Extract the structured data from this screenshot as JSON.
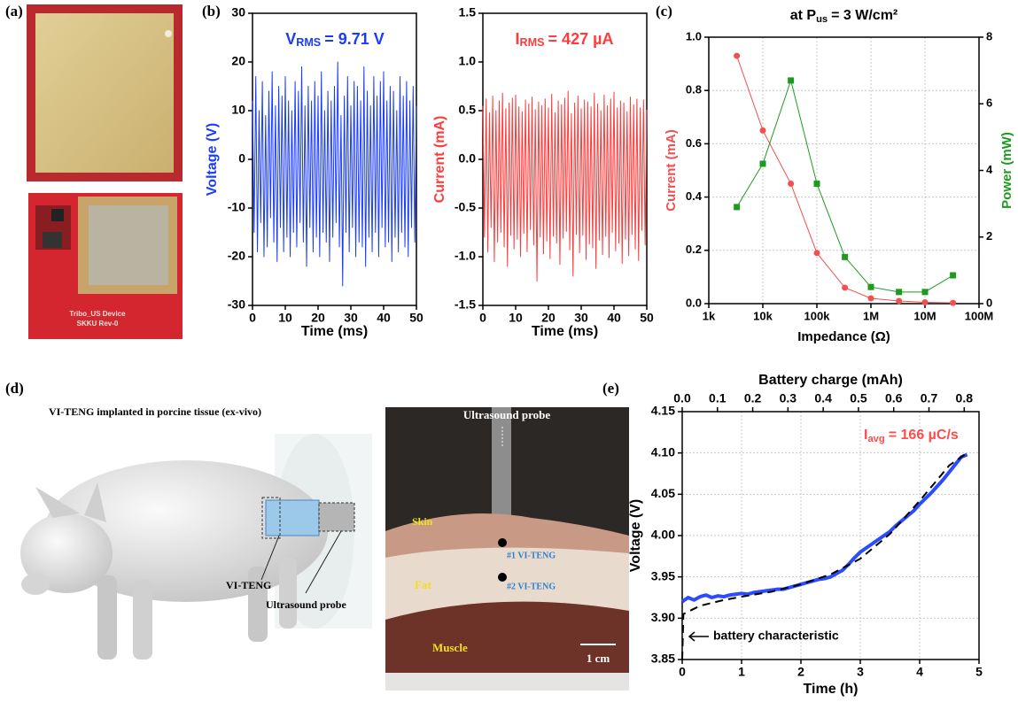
{
  "figure": {
    "panel_labels": [
      "(a)",
      "(b)",
      "(c)",
      "(d)",
      "(e)"
    ],
    "pcb": [
      "Tribo_US Device",
      "SKKU Rev-0"
    ],
    "illustration": {
      "title": "VI-TENG implanted in porcine tissue (ex-vivo)",
      "labels": [
        "VI-TENG",
        "Ultrasound probe"
      ]
    },
    "photo": {
      "labels": [
        "Ultrasound probe",
        "Skin",
        "Fat",
        "Muscle",
        "#1 VI-TENG",
        "#2 VI-TENG",
        "1 cm"
      ]
    }
  },
  "chart_data": [
    {
      "type": "line",
      "x": [
        0,
        0.5,
        1,
        1.5,
        2,
        2.5,
        3,
        3.5,
        4,
        4.5,
        5,
        5.5,
        6,
        6.5,
        7,
        7.5,
        8,
        8.5,
        9,
        9.5,
        10,
        10.5,
        11,
        11.5,
        12,
        12.5,
        13,
        13.5,
        14,
        14.5,
        15,
        15.5,
        16,
        16.5,
        17,
        17.5,
        18,
        18.5,
        19,
        19.5,
        20,
        20.5,
        21,
        21.5,
        22,
        22.5,
        23,
        23.5,
        24,
        24.5,
        25,
        25.5,
        26,
        26.5,
        27,
        27.5,
        28,
        28.5,
        29,
        29.5,
        30,
        30.5,
        31,
        31.5,
        32,
        32.5,
        33,
        33.5,
        34,
        34.5,
        35,
        35.5,
        36,
        36.5,
        37,
        37.5,
        38,
        38.5,
        39,
        39.5,
        40,
        40.5,
        41,
        41.5,
        42,
        42.5,
        43,
        43.5,
        44,
        44.5,
        45,
        45.5,
        46,
        46.5,
        47,
        47.5,
        48,
        48.5,
        49,
        49.5,
        50
      ],
      "xlim": [
        0,
        50
      ],
      "xticks": [
        0,
        10,
        20,
        30,
        40,
        50
      ],
      "ylim": [
        -30,
        30
      ],
      "yticks": [
        -30,
        -20,
        -10,
        0,
        10,
        20,
        30
      ],
      "xlabel": "Time (ms)",
      "ylabel": "Voltage (V)",
      "grid": false,
      "series": [
        {
          "color": "#1a3cff",
          "values": [
            12,
            -15,
            17,
            -19,
            10,
            -13,
            16,
            -20,
            9,
            -18,
            14,
            -12,
            18,
            -17,
            11,
            -21,
            15,
            -14,
            13,
            -19,
            17,
            -16,
            12,
            -20,
            10,
            -15,
            16,
            -18,
            14,
            -13,
            19,
            -17,
            11,
            -22,
            15,
            -14,
            12,
            -19,
            16,
            -16,
            13,
            -20,
            18,
            -15,
            10,
            -17,
            14,
            -21,
            12,
            -16,
            15,
            -13,
            20,
            -18,
            9,
            -26,
            13,
            -15,
            17,
            -19,
            11,
            -14,
            16,
            -20,
            15,
            -17,
            12,
            -18,
            19,
            -22,
            14,
            -16,
            11,
            -19,
            17,
            -15,
            13,
            -20,
            16,
            -14,
            18,
            -18,
            12,
            -17,
            15,
            -21,
            14,
            -16,
            10,
            -19,
            17,
            -15,
            13,
            -18,
            16,
            -20,
            12,
            -14,
            15,
            -17,
            11
          ]
        }
      ],
      "annotation": {
        "text": "V",
        "sub": "RMS",
        "rest": "= 9.71 V",
        "color": "#1a3cff"
      }
    },
    {
      "type": "line",
      "x": [
        0,
        0.5,
        1,
        1.5,
        2,
        2.5,
        3,
        3.5,
        4,
        4.5,
        5,
        5.5,
        6,
        6.5,
        7,
        7.5,
        8,
        8.5,
        9,
        9.5,
        10,
        10.5,
        11,
        11.5,
        12,
        12.5,
        13,
        13.5,
        14,
        14.5,
        15,
        15.5,
        16,
        16.5,
        17,
        17.5,
        18,
        18.5,
        19,
        19.5,
        20,
        20.5,
        21,
        21.5,
        22,
        22.5,
        23,
        23.5,
        24,
        24.5,
        25,
        25.5,
        26,
        26.5,
        27,
        27.5,
        28,
        28.5,
        29,
        29.5,
        30,
        30.5,
        31,
        31.5,
        32,
        32.5,
        33,
        33.5,
        34,
        34.5,
        35,
        35.5,
        36,
        36.5,
        37,
        37.5,
        38,
        38.5,
        39,
        39.5,
        40,
        40.5,
        41,
        41.5,
        42,
        42.5,
        43,
        43.5,
        44,
        44.5,
        45,
        45.5,
        46,
        46.5,
        47,
        47.5,
        48,
        48.5,
        49,
        49.5,
        50
      ],
      "xlim": [
        0,
        50
      ],
      "xticks": [
        0,
        10,
        20,
        30,
        40,
        50
      ],
      "ylim": [
        -1.5,
        1.5
      ],
      "yticks": [
        -1.5,
        {
          "value": -1,
          "label": "-1.0"
        },
        -0.5,
        {
          "value": 0,
          "label": "0.0"
        },
        0.5,
        {
          "value": 1,
          "label": "1.0"
        },
        1.5
      ],
      "xlabel": "Time (ms)",
      "ylabel": "Current (mA)",
      "grid": false,
      "series": [
        {
          "color": "#ff3b3b",
          "values": [
            0.55,
            -0.8,
            0.62,
            -0.95,
            0.48,
            -0.7,
            0.65,
            -1.05,
            0.5,
            -0.85,
            0.6,
            -0.75,
            0.68,
            -0.9,
            0.52,
            -1.1,
            0.58,
            -0.78,
            0.63,
            -0.92,
            0.66,
            -0.82,
            0.54,
            -1.0,
            0.49,
            -0.76,
            0.61,
            -0.95,
            0.57,
            -0.72,
            0.64,
            -0.88,
            0.51,
            -1.25,
            0.59,
            -0.8,
            0.55,
            -0.97,
            0.62,
            -0.84,
            0.53,
            -1.02,
            0.67,
            -0.79,
            0.48,
            -0.86,
            0.6,
            -1.08,
            0.56,
            -0.81,
            0.63,
            -0.74,
            0.7,
            -0.93,
            0.47,
            -1.2,
            0.58,
            -0.77,
            0.65,
            -0.96,
            0.52,
            -0.78,
            0.61,
            -1.03,
            0.59,
            -0.87,
            0.54,
            -0.91,
            0.68,
            -1.12,
            0.57,
            -0.83,
            0.5,
            -0.98,
            0.66,
            -0.79,
            0.55,
            -1.01,
            0.62,
            -0.75,
            0.69,
            -0.94,
            0.53,
            -0.86,
            0.6,
            -1.07,
            0.58,
            -0.82,
            0.49,
            -0.99,
            0.64,
            -0.77,
            0.56,
            -0.92,
            0.62,
            -1.04,
            0.53,
            -0.73,
            0.61,
            -0.88,
            0.51
          ]
        }
      ],
      "annotation": {
        "text": "I",
        "sub": "RMS",
        "rest": "= 427 µA",
        "color": "#ff3b3b"
      }
    },
    {
      "type": "line",
      "title": {
        "text": "at P",
        "sub": "us",
        "rest": "= 3 W/cm²"
      },
      "x": [
        3300,
        10000,
        33000,
        100000,
        330000,
        1000000,
        3300000,
        10000000,
        33000000
      ],
      "xscale": "log",
      "xlim": [
        1000,
        100000000
      ],
      "xticks": [
        {
          "value": 1000,
          "label": "1k"
        },
        {
          "value": 10000,
          "label": "10k"
        },
        {
          "value": 100000,
          "label": "100k"
        },
        {
          "value": 1000000,
          "label": "1M"
        },
        {
          "value": 10000000,
          "label": "10M"
        },
        {
          "value": 100000000,
          "label": "100M"
        }
      ],
      "ylim": [
        0,
        1
      ],
      "yticks": [
        {
          "value": 0,
          "label": "0.0"
        },
        0.2,
        0.4,
        0.6,
        0.8,
        {
          "value": 1,
          "label": "1.0"
        }
      ],
      "y2lim": [
        0,
        8
      ],
      "y2ticks": [
        0,
        2,
        4,
        6,
        8
      ],
      "xlabel": "Impedance (Ω)",
      "ylabel": "Current (mA)",
      "y2label": "Power (mW)",
      "grid": true,
      "series": [
        {
          "color": "#f05050",
          "marker": "circle",
          "values": [
            0.93,
            0.65,
            0.45,
            0.19,
            0.06,
            0.02,
            0.01,
            0.005,
            0.003
          ]
        },
        {
          "color": "#1e9a1e",
          "marker": "square",
          "axis": "y2",
          "values": [
            2.9,
            4.2,
            6.7,
            3.6,
            1.4,
            0.5,
            0.35,
            0.35,
            0.85
          ]
        }
      ]
    },
    {
      "type": "line",
      "x": [
        0,
        0.1,
        0.2,
        0.3,
        0.4,
        0.5,
        0.6,
        0.7,
        0.8,
        0.9,
        1,
        1.1,
        1.2,
        1.3,
        1.4,
        1.5,
        1.6,
        1.7,
        1.8,
        1.9,
        2,
        2.1,
        2.2,
        2.3,
        2.4,
        2.5,
        2.6,
        2.7,
        2.8,
        2.9,
        3,
        3.1,
        3.2,
        3.3,
        3.4,
        3.5,
        3.6,
        3.7,
        3.8,
        3.9,
        4,
        4.1,
        4.2,
        4.3,
        4.4,
        4.5,
        4.6,
        4.7,
        4.8
      ],
      "xlim": [
        0,
        5
      ],
      "xticks": [
        0,
        1,
        2,
        3,
        4,
        5
      ],
      "ylim": [
        3.85,
        4.15
      ],
      "yticks": [
        3.85,
        {
          "value": 3.9,
          "label": "3.90"
        },
        3.95,
        {
          "value": 4,
          "label": "4.00"
        },
        4.05,
        {
          "value": 4.1,
          "label": "4.10"
        },
        4.15
      ],
      "x2lim": [
        0,
        0.842
      ],
      "x2ticks": [
        {
          "value": 0,
          "label": "0.0"
        },
        0.1,
        0.2,
        0.3,
        0.4,
        0.5,
        0.6,
        0.7,
        0.8
      ],
      "x2label": "Battery charge (mAh)",
      "xlabel": "Time (h)",
      "ylabel": "Voltage (V)",
      "grid": true,
      "series": [
        {
          "color": "#2a4bff",
          "width": 4,
          "values": [
            3.92,
            3.925,
            3.922,
            3.926,
            3.928,
            3.925,
            3.927,
            3.926,
            3.928,
            3.929,
            3.93,
            3.929,
            3.931,
            3.932,
            3.933,
            3.934,
            3.935,
            3.935,
            3.937,
            3.939,
            3.941,
            3.943,
            3.945,
            3.947,
            3.948,
            3.95,
            3.954,
            3.958,
            3.965,
            3.973,
            3.98,
            3.985,
            3.99,
            3.995,
            4.0,
            4.005,
            4.012,
            4.018,
            4.024,
            4.03,
            4.038,
            4.045,
            4.052,
            4.06,
            4.068,
            4.077,
            4.086,
            4.095,
            4.098
          ]
        },
        {
          "color": "#000000",
          "width": 2,
          "dash": true,
          "x": [
            0,
            0.02,
            0.3,
            0.7,
            1,
            1.5,
            2,
            2.5,
            3,
            3.5,
            4,
            4.5,
            4.8
          ],
          "values": [
            3.85,
            3.905,
            3.915,
            3.922,
            3.926,
            3.932,
            3.941,
            3.953,
            3.972,
            4.002,
            4.042,
            4.085,
            4.1
          ]
        }
      ],
      "annotation": {
        "text": "I",
        "sub": "avg",
        "rest": "= 166 µC/s",
        "color": "#ff4a4a"
      },
      "note": "battery characteristic"
    }
  ]
}
